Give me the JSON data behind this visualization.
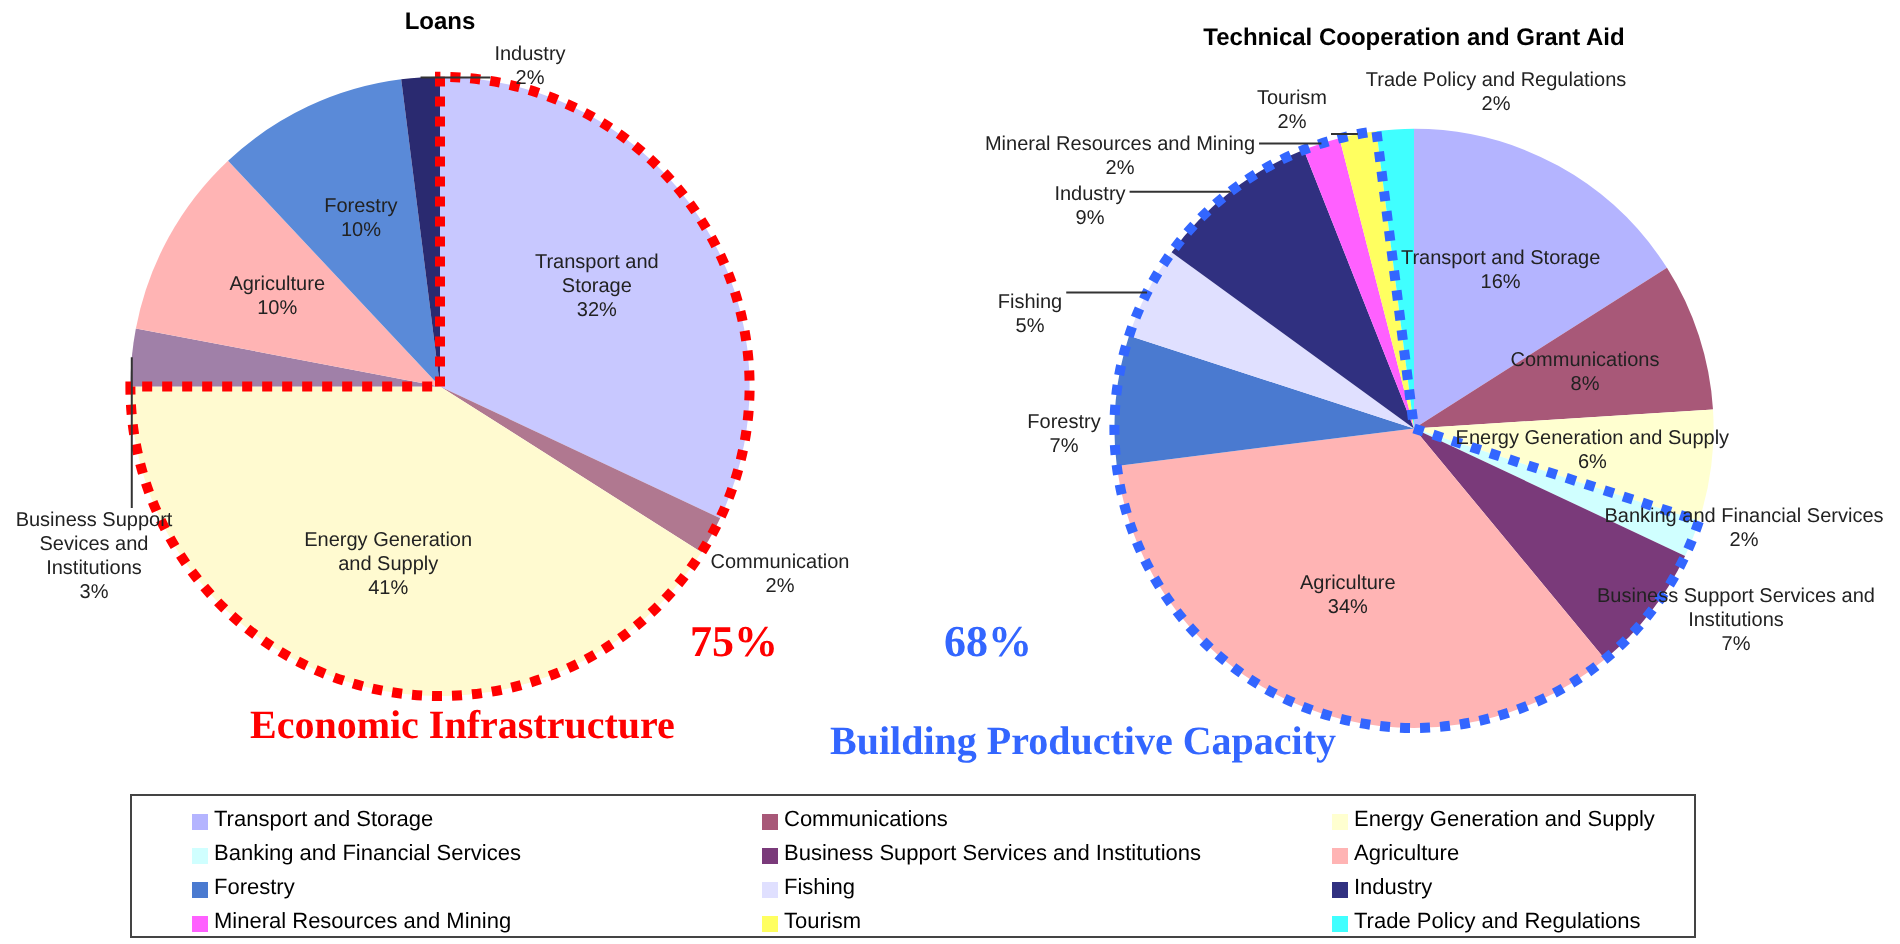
{
  "chart_data": [
    {
      "type": "pie",
      "title": "Loans",
      "categories": [
        "Transport and Storage",
        "Communication",
        "Energy Generation and Supply",
        "Business Support Sevices and Institutions",
        "Agriculture",
        "Forestry",
        "Industry"
      ],
      "values": [
        32,
        2,
        41,
        3,
        10,
        10,
        2
      ],
      "value_labels": [
        "32%",
        "2%",
        "41%",
        "3%",
        "10%",
        "10%",
        "2%"
      ],
      "colors": [
        "#c8c8ff",
        "#b07890",
        "#fffad0",
        "#a080a8",
        "#ffb4b4",
        "#5a8ad8",
        "#2a2a70"
      ],
      "legend": false,
      "annotations": [
        "75%",
        "Economic Infrastructure"
      ]
    },
    {
      "type": "pie",
      "title": "Technical Cooperation and Grant Aid",
      "categories": [
        "Transport and Storage",
        "Communications",
        "Energy Generation and Supply",
        "Banking and Financial Services",
        "Business Support Services and Institutions",
        "Agriculture",
        "Forestry",
        "Fishing",
        "Industry",
        "Mineral Resources and Mining",
        "Tourism",
        "Trade Policy and Regulations"
      ],
      "values": [
        16,
        8,
        6,
        2,
        7,
        34,
        7,
        5,
        9,
        2,
        2,
        2
      ],
      "value_labels": [
        "16%",
        "8%",
        "6%",
        "2%",
        "7%",
        "34%",
        "7%",
        "5%",
        "9%",
        "2%",
        "2%",
        "2%"
      ],
      "colors": [
        "#b4b4ff",
        "#a85878",
        "#ffffd0",
        "#d0ffff",
        "#7a3a7a",
        "#ffb4b4",
        "#4a7ad0",
        "#e0e0ff",
        "#303080",
        "#ff60ff",
        "#ffff60",
        "#40ffff"
      ],
      "legend": "bottom",
      "annotations": [
        "68%",
        "Building Productive Capacity"
      ]
    }
  ]
}
